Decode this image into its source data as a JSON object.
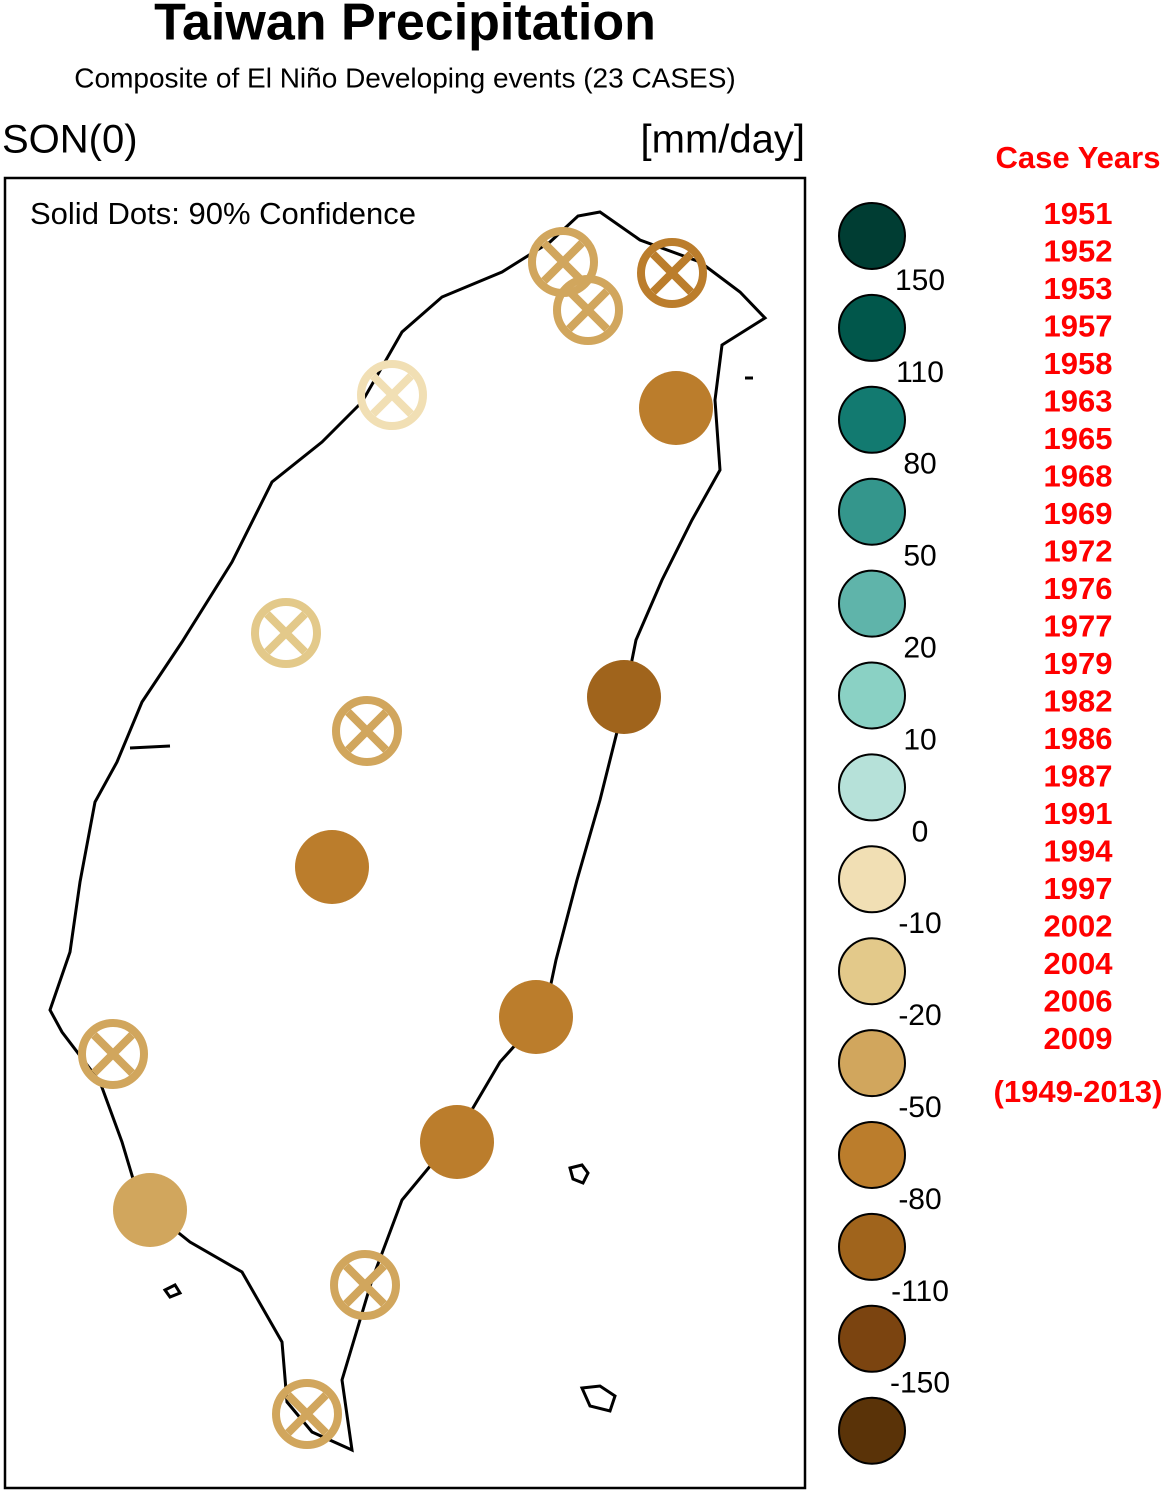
{
  "header": {
    "title": "Taiwan Precipitation",
    "subtitle": "Composite of El Niño Developing events (23 CASES)",
    "season": "SON(0)",
    "unit": "[mm/day]"
  },
  "map": {
    "note": "Solid Dots: 90% Confidence",
    "stations": [
      {
        "level": 9,
        "significant": false
      },
      {
        "level": 9,
        "significant": false
      },
      {
        "level": 10,
        "significant": false
      },
      {
        "level": 7,
        "significant": false
      },
      {
        "level": 10,
        "significant": true
      },
      {
        "level": 8,
        "significant": false
      },
      {
        "level": 9,
        "significant": false
      },
      {
        "level": 11,
        "significant": true
      },
      {
        "level": 10,
        "significant": true
      },
      {
        "level": 10,
        "significant": true
      },
      {
        "level": 9,
        "significant": false
      },
      {
        "level": 10,
        "significant": true
      },
      {
        "level": 9,
        "significant": true
      },
      {
        "level": 9,
        "significant": false
      },
      {
        "level": 9,
        "significant": false
      }
    ]
  },
  "legend": {
    "colors": [
      "#003d33",
      "#01574b",
      "#127a70",
      "#34968c",
      "#5fb4aa",
      "#8ad1c4",
      "#b6e1d9",
      "#f1dfb4",
      "#e3c98a",
      "#d1a65d",
      "#bb7d2c",
      "#a0641c",
      "#7b4410",
      "#5a3308"
    ],
    "labels": [
      150,
      110,
      80,
      50,
      20,
      10,
      0,
      -10,
      -20,
      -50,
      -80,
      -110,
      -150
    ]
  },
  "cases": {
    "title": "Case Years",
    "years": [
      "1951",
      "1952",
      "1953",
      "1957",
      "1958",
      "1963",
      "1965",
      "1968",
      "1969",
      "1972",
      "1976",
      "1977",
      "1979",
      "1982",
      "1986",
      "1987",
      "1991",
      "1994",
      "1997",
      "2002",
      "2004",
      "2006",
      "2009"
    ],
    "period": "(1949-2013)"
  }
}
